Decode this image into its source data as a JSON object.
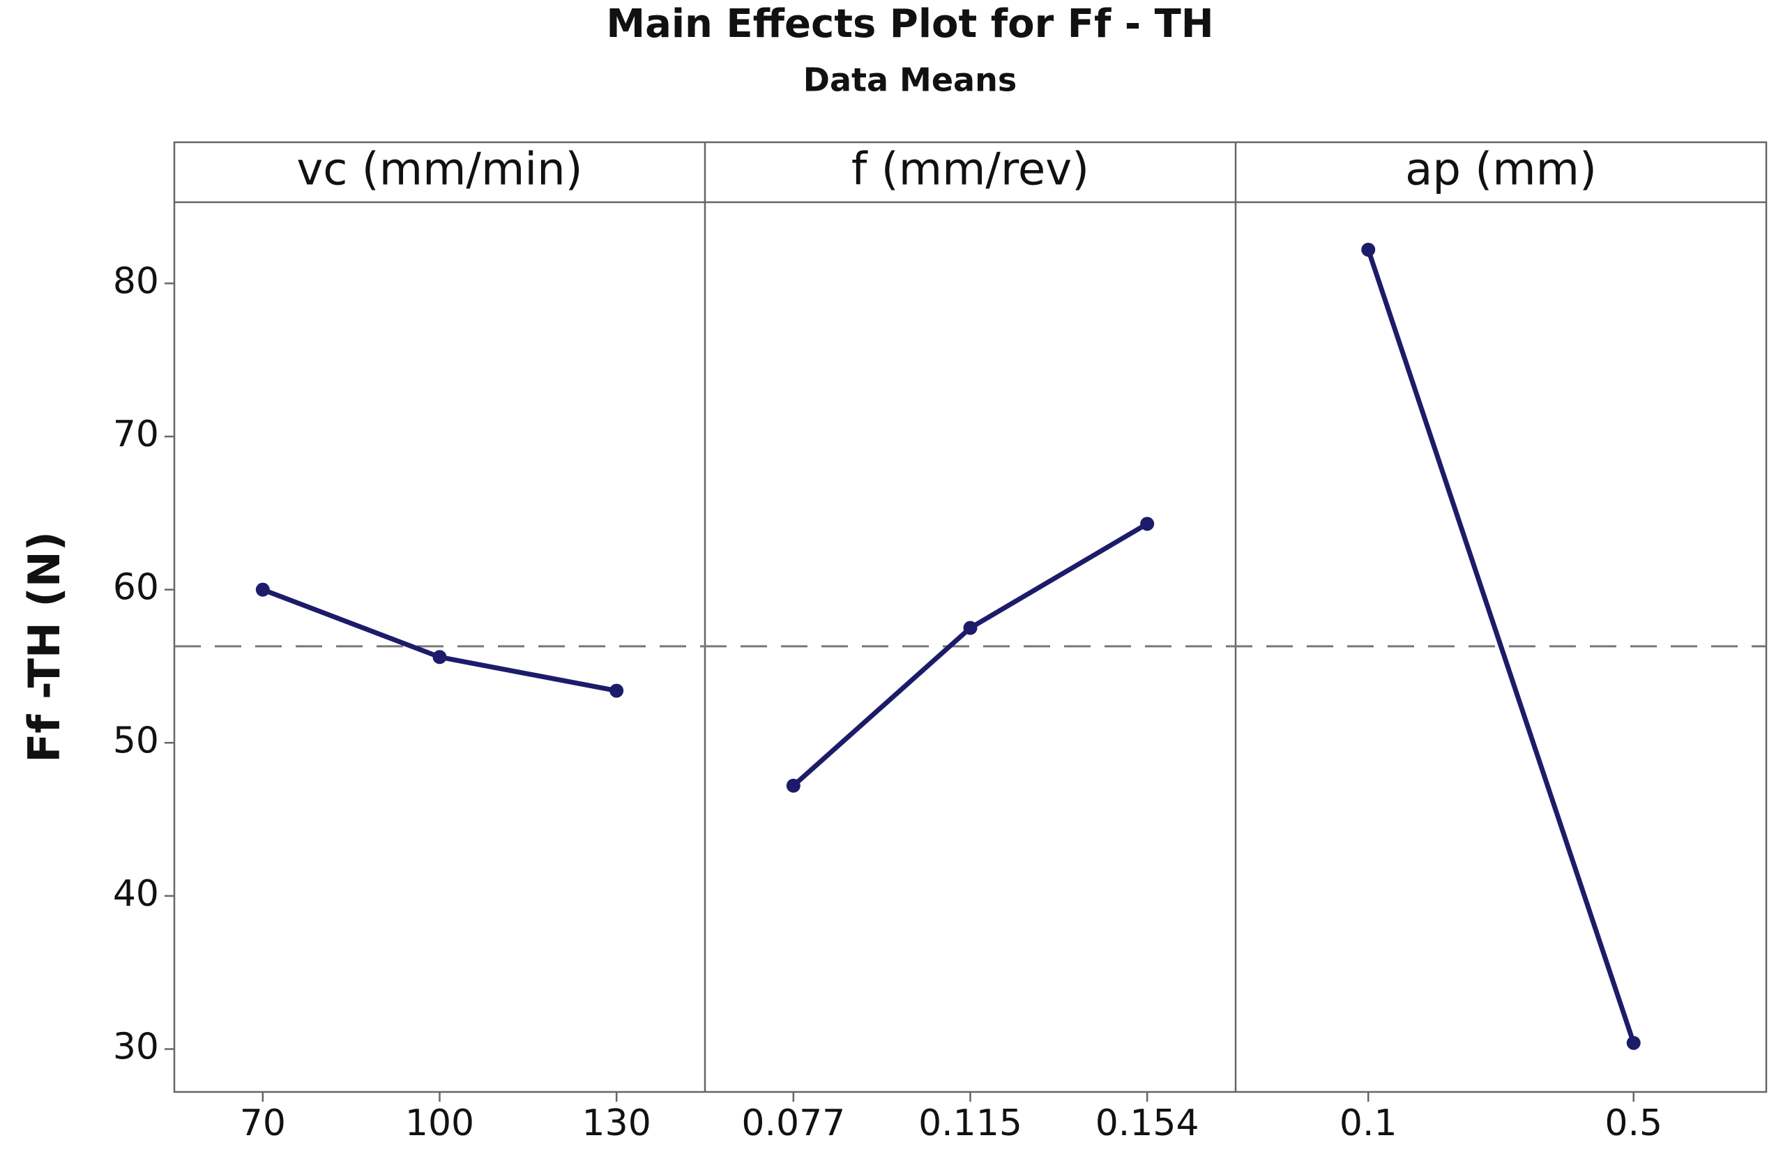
{
  "chart_data": {
    "type": "line",
    "title": "Main Effects Plot for Ff - TH",
    "subtitle": "Data Means",
    "y_label": "Ff -TH (N)",
    "ylim": [
      27.2,
      85.3
    ],
    "yticks": [
      30,
      40,
      50,
      60,
      70,
      80
    ],
    "color": "#1c1c6b",
    "reference_line": 56.3,
    "panels": [
      {
        "title": "vc (mm/min)",
        "categories": [
          "70",
          "100",
          "130"
        ],
        "values": [
          60.0,
          55.6,
          53.4
        ]
      },
      {
        "title": "f (mm/rev)",
        "categories": [
          "0.077",
          "0.115",
          "0.154"
        ],
        "values": [
          47.2,
          57.5,
          64.3
        ]
      },
      {
        "title": "ap (mm)",
        "categories": [
          "0.1",
          "0.5"
        ],
        "values": [
          82.2,
          30.4
        ]
      }
    ]
  }
}
